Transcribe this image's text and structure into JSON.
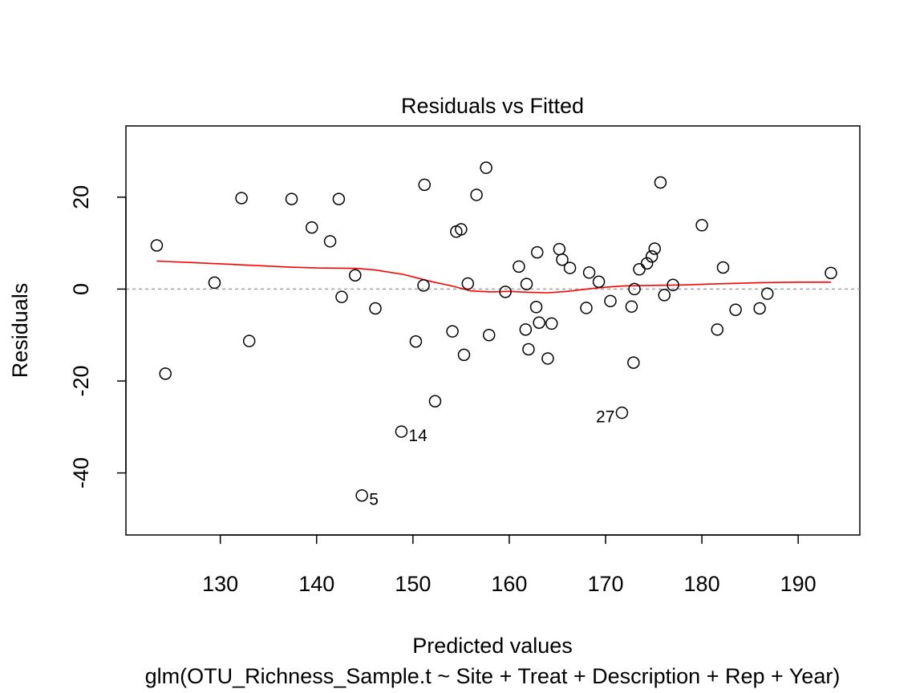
{
  "chart_data": {
    "type": "scatter",
    "title": "Residuals vs Fitted",
    "xlabel": "Predicted values",
    "subtitle": "glm(OTU_Richness_Sample.t ~ Site + Treat + Description + Rep + Year)",
    "ylabel": "Residuals",
    "xlim": [
      120.2,
      196.4
    ],
    "ylim": [
      -53.5,
      35.5
    ],
    "x_ticks": [
      130,
      140,
      150,
      160,
      170,
      180,
      190
    ],
    "y_ticks": [
      -40,
      -20,
      0,
      20
    ],
    "grid": false,
    "reference_line": 0,
    "colors": {
      "points": "#000000",
      "smooth": "#ff0000",
      "reference": "#a0a0a0"
    },
    "points": [
      {
        "x": 123.4,
        "y": 9.5
      },
      {
        "x": 124.3,
        "y": -18.4
      },
      {
        "x": 129.4,
        "y": 1.4
      },
      {
        "x": 132.2,
        "y": 19.8
      },
      {
        "x": 133.0,
        "y": -11.3
      },
      {
        "x": 137.4,
        "y": 19.6
      },
      {
        "x": 139.5,
        "y": 13.4
      },
      {
        "x": 141.4,
        "y": 10.4
      },
      {
        "x": 142.3,
        "y": 19.6
      },
      {
        "x": 142.6,
        "y": -1.7
      },
      {
        "x": 144.0,
        "y": 3.0
      },
      {
        "x": 144.7,
        "y": -44.9
      },
      {
        "x": 146.1,
        "y": -4.2
      },
      {
        "x": 148.8,
        "y": -31.0
      },
      {
        "x": 150.3,
        "y": -11.4
      },
      {
        "x": 151.1,
        "y": 0.8
      },
      {
        "x": 151.2,
        "y": 22.7
      },
      {
        "x": 152.3,
        "y": -24.4
      },
      {
        "x": 154.1,
        "y": -9.2
      },
      {
        "x": 154.5,
        "y": 12.5
      },
      {
        "x": 155.0,
        "y": 13.0
      },
      {
        "x": 155.3,
        "y": -14.3
      },
      {
        "x": 155.7,
        "y": 1.2
      },
      {
        "x": 156.6,
        "y": 20.5
      },
      {
        "x": 157.6,
        "y": 26.4
      },
      {
        "x": 157.9,
        "y": -10.0
      },
      {
        "x": 159.6,
        "y": -0.6
      },
      {
        "x": 161.0,
        "y": 4.9
      },
      {
        "x": 161.7,
        "y": -8.8
      },
      {
        "x": 161.8,
        "y": 1.1
      },
      {
        "x": 162.0,
        "y": -13.1
      },
      {
        "x": 162.8,
        "y": -3.9
      },
      {
        "x": 162.9,
        "y": 8.0
      },
      {
        "x": 163.1,
        "y": -7.3
      },
      {
        "x": 164.0,
        "y": -15.1
      },
      {
        "x": 164.4,
        "y": -7.5
      },
      {
        "x": 165.2,
        "y": 8.7
      },
      {
        "x": 165.5,
        "y": 6.4
      },
      {
        "x": 166.3,
        "y": 4.6
      },
      {
        "x": 168.0,
        "y": -4.1
      },
      {
        "x": 168.3,
        "y": 3.6
      },
      {
        "x": 169.3,
        "y": 1.6
      },
      {
        "x": 170.5,
        "y": -2.6
      },
      {
        "x": 171.7,
        "y": -26.9
      },
      {
        "x": 172.7,
        "y": -3.8
      },
      {
        "x": 172.9,
        "y": -16.0
      },
      {
        "x": 173.0,
        "y": 0.0
      },
      {
        "x": 173.5,
        "y": 4.3
      },
      {
        "x": 174.3,
        "y": 5.6
      },
      {
        "x": 174.8,
        "y": 7.1
      },
      {
        "x": 175.1,
        "y": 8.8
      },
      {
        "x": 175.7,
        "y": 23.2
      },
      {
        "x": 176.1,
        "y": -1.3
      },
      {
        "x": 177.0,
        "y": 0.9
      },
      {
        "x": 180.0,
        "y": 13.9
      },
      {
        "x": 181.6,
        "y": -8.8
      },
      {
        "x": 182.2,
        "y": 4.7
      },
      {
        "x": 183.5,
        "y": -4.5
      },
      {
        "x": 186.0,
        "y": -4.2
      },
      {
        "x": 186.8,
        "y": -1.0
      },
      {
        "x": 193.4,
        "y": 3.5
      }
    ],
    "point_labels": [
      {
        "text": "5",
        "x": 144.7,
        "y": -44.9,
        "side": "right"
      },
      {
        "text": "14",
        "x": 148.8,
        "y": -31.0,
        "side": "right"
      },
      {
        "text": "27",
        "x": 171.7,
        "y": -26.9,
        "side": "left"
      }
    ],
    "smooth_line": {
      "x": [
        123.4,
        130,
        137,
        140,
        144,
        146,
        149,
        152,
        154,
        156,
        158,
        160,
        162,
        164,
        166,
        168,
        170,
        172,
        175,
        178,
        181,
        186,
        190,
        193.4
      ],
      "y": [
        6.1,
        5.5,
        4.8,
        4.6,
        4.5,
        4.2,
        3.2,
        1.6,
        0.7,
        -0.4,
        -0.6,
        -0.5,
        -0.7,
        -0.8,
        -0.5,
        0.0,
        0.4,
        0.7,
        0.8,
        0.9,
        1.1,
        1.4,
        1.5,
        1.5
      ]
    }
  }
}
